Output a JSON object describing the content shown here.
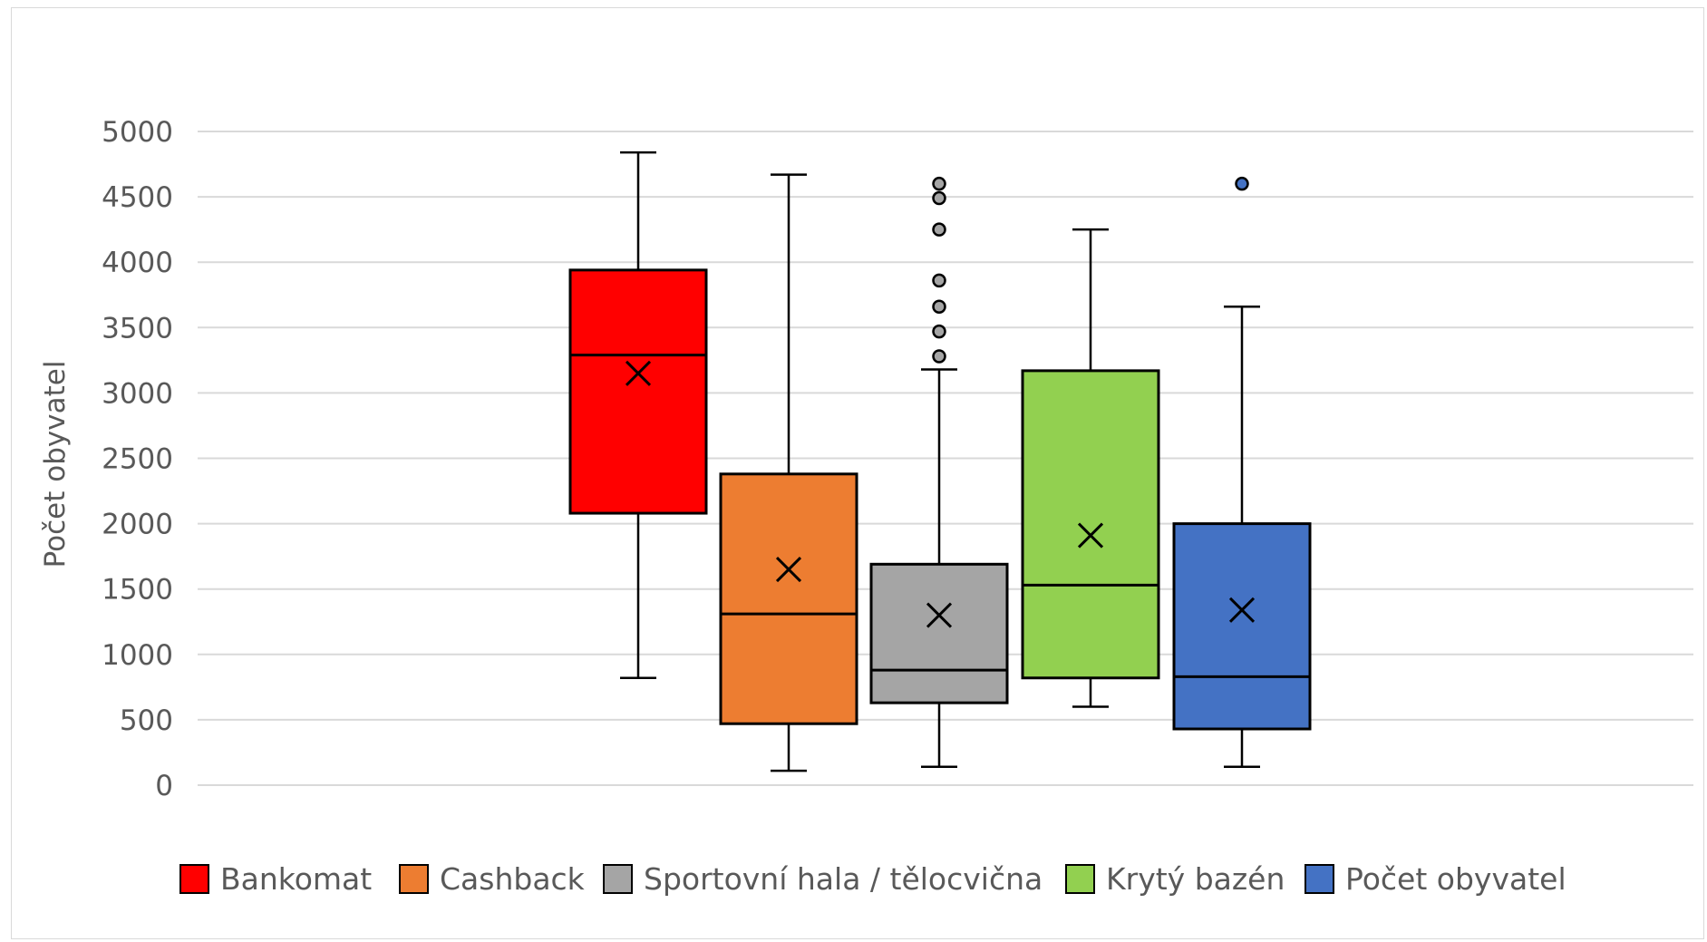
{
  "chart_data": {
    "type": "box",
    "title": "",
    "xlabel": "",
    "ylabel": "Počet obyvatel",
    "ylim": [
      0,
      5000
    ],
    "y_ticks": [
      0,
      500,
      1000,
      1500,
      2000,
      2500,
      3000,
      3500,
      4000,
      4500,
      5000
    ],
    "grid": true,
    "legend_position": "bottom",
    "series": [
      {
        "name": "Bankomat",
        "color": "#ff0000",
        "whisker_low": 820,
        "q1": 2080,
        "median": 3290,
        "q3": 3940,
        "whisker_high": 4840,
        "mean": 3150,
        "outliers": []
      },
      {
        "name": "Cashback",
        "color": "#ed7d31",
        "whisker_low": 110,
        "q1": 470,
        "median": 1310,
        "q3": 2380,
        "whisker_high": 4670,
        "mean": 1650,
        "outliers": []
      },
      {
        "name": "Sportovní hala / tělocvična",
        "color": "#a5a5a5",
        "whisker_low": 140,
        "q1": 630,
        "median": 880,
        "q3": 1690,
        "whisker_high": 3180,
        "mean": 1300,
        "outliers": [
          3280,
          3470,
          3660,
          3860,
          4250,
          4490,
          4600
        ]
      },
      {
        "name": "Krytý bazén",
        "color": "#92d050",
        "whisker_low": 600,
        "q1": 820,
        "median": 1530,
        "q3": 3170,
        "whisker_high": 4250,
        "mean": 1910,
        "outliers": []
      },
      {
        "name": "Počet obyvatel",
        "color": "#4472c4",
        "whisker_low": 140,
        "q1": 430,
        "median": 830,
        "q3": 2000,
        "whisker_high": 3660,
        "mean": 1340,
        "outliers": [
          4600
        ]
      }
    ]
  }
}
